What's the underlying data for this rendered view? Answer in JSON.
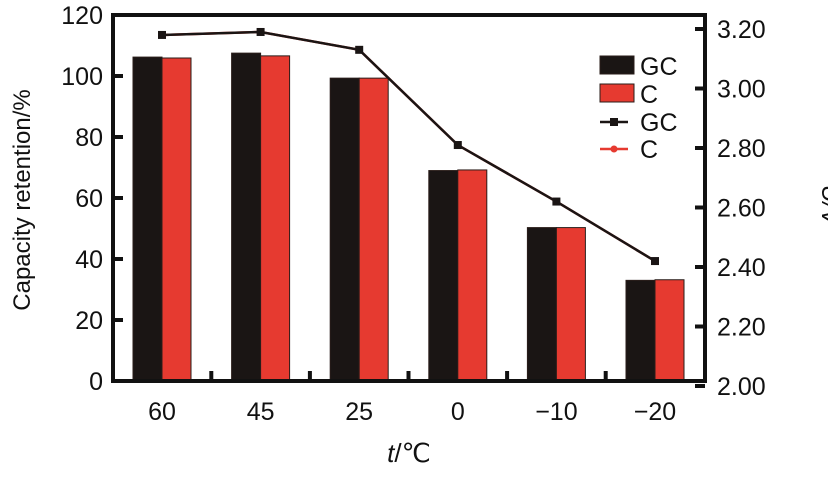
{
  "chart_data": {
    "type": "bar+line",
    "xlabel_italic": "t",
    "xlabel_unit": "/℃",
    "ylabel": "Capacity retention/%",
    "y2label": "U/V",
    "categories": [
      "60",
      "45",
      "25",
      "0",
      "−10",
      "−20"
    ],
    "ylim": [
      0,
      120
    ],
    "yticks": [
      "0",
      "20",
      "40",
      "60",
      "80",
      "100",
      "120"
    ],
    "y2lim": [
      2.0,
      3.2
    ],
    "y2ticks": [
      "2.00",
      "2.20",
      "2.40",
      "2.60",
      "2.80",
      "3.00",
      "3.20"
    ],
    "bar_series": [
      {
        "name": "GC",
        "color": "#1a1514",
        "values": [
          106.2,
          107.5,
          99.3,
          69.0,
          50.3,
          33.0
        ]
      },
      {
        "name": "C",
        "color": "#e63a30",
        "values": [
          105.9,
          106.6,
          99.3,
          69.2,
          50.3,
          33.2
        ]
      }
    ],
    "line_series": [
      {
        "name": "GC",
        "color": "#1a1514",
        "marker": "square",
        "values": [
          3.18,
          3.19,
          3.13,
          2.81,
          2.62,
          2.42
        ]
      },
      {
        "name": "C",
        "color": "#e63a30",
        "marker": "circle",
        "values": [
          3.18,
          3.19,
          3.13,
          2.81,
          2.62,
          2.42
        ]
      }
    ],
    "legend_position": "top-right",
    "grid": false
  }
}
